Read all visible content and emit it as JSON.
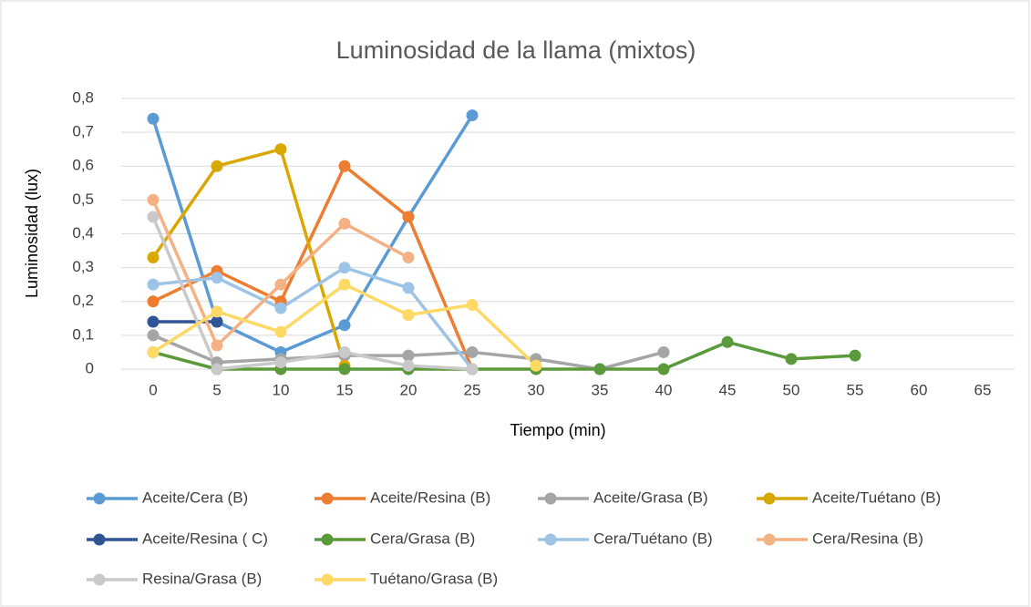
{
  "chart_data": {
    "type": "line",
    "title": "Luminosidad de la llama (mixtos)",
    "x_label": "Tiempo (min)",
    "y_label": "Luminosidad (lux)",
    "categories": [
      "0",
      "5",
      "10",
      "15",
      "20",
      "25",
      "30",
      "35",
      "40",
      "45",
      "50",
      "55",
      "60",
      "65"
    ],
    "ylim": [
      0,
      0.8
    ],
    "yticks": [
      0,
      {
        "value": 0.1,
        "label": "0,1"
      },
      {
        "value": 0.2,
        "label": "0,2"
      },
      {
        "value": 0.3,
        "label": "0,3"
      },
      {
        "value": 0.4,
        "label": "0,4"
      },
      {
        "value": 0.5,
        "label": "0,5"
      },
      {
        "value": 0.6,
        "label": "0,6"
      },
      {
        "value": 0.7,
        "label": "0,7"
      },
      {
        "value": 0.8,
        "label": "0,8"
      }
    ],
    "grid": true,
    "legend": "bottom",
    "series": [
      {
        "name": "Aceite/Cera (B)",
        "color": "#5b9bd5",
        "values": [
          0.74,
          0.14,
          0.05,
          0.13,
          0.45,
          0.75,
          null,
          null,
          null,
          null,
          null,
          null,
          null,
          null
        ]
      },
      {
        "name": "Aceite/Resina (B)",
        "color": "#ed7d31",
        "values": [
          0.2,
          0.29,
          0.2,
          0.6,
          0.45,
          0.0,
          null,
          null,
          null,
          null,
          null,
          null,
          null,
          null
        ]
      },
      {
        "name": "Aceite/Grasa (B)",
        "color": "#a5a5a5",
        "values": [
          0.1,
          0.02,
          0.03,
          0.04,
          0.04,
          0.05,
          0.03,
          0.0,
          0.05,
          null,
          null,
          null,
          null,
          null
        ]
      },
      {
        "name": "Aceite/Tuétano (B)",
        "color": "#d9a800",
        "values": [
          0.33,
          0.6,
          0.65,
          0.01,
          null,
          null,
          null,
          null,
          null,
          null,
          null,
          null,
          null,
          null
        ]
      },
      {
        "name": "Aceite/Resina ( C)",
        "color": "#2f5597",
        "values": [
          0.14,
          0.14,
          null,
          null,
          null,
          null,
          null,
          null,
          null,
          null,
          null,
          null,
          null,
          null
        ]
      },
      {
        "name": "Cera/Grasa (B)",
        "color": "#5b9a3a",
        "values": [
          0.05,
          0.0,
          0.0,
          0.0,
          0.0,
          0.0,
          0.0,
          0.0,
          0.0,
          0.08,
          0.03,
          0.04,
          null,
          null
        ]
      },
      {
        "name": "Cera/Tuétano (B)",
        "color": "#9dc3e6",
        "values": [
          0.25,
          0.27,
          0.18,
          0.3,
          0.24,
          0.0,
          null,
          null,
          null,
          null,
          null,
          null,
          null,
          null
        ]
      },
      {
        "name": "Cera/Resina (B)",
        "color": "#f4b183",
        "values": [
          0.5,
          0.07,
          0.25,
          0.43,
          0.33,
          null,
          null,
          null,
          null,
          null,
          null,
          null,
          null,
          null
        ]
      },
      {
        "name": "Resina/Grasa (B)",
        "color": "#c9c9c9",
        "values": [
          0.45,
          0.0,
          0.02,
          0.05,
          0.01,
          0.0,
          null,
          null,
          null,
          null,
          null,
          null,
          null,
          null
        ]
      },
      {
        "name": "Tuétano/Grasa (B)",
        "color": "#ffd966",
        "values": [
          0.05,
          0.17,
          0.11,
          0.25,
          0.16,
          0.19,
          0.01,
          null,
          null,
          null,
          null,
          null,
          null,
          null
        ]
      }
    ]
  }
}
